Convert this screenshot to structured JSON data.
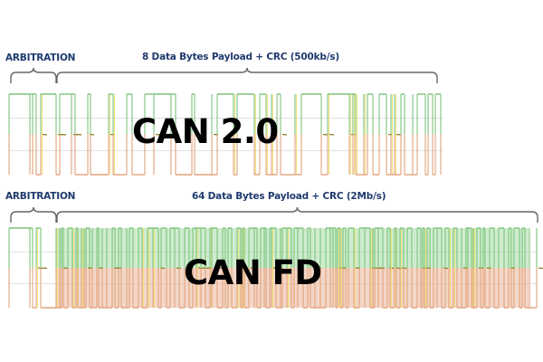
{
  "colors": {
    "label_text": "#1f3a6e",
    "brace": "#666666",
    "high_line": "#7cc47c",
    "low_line": "#e2a27c",
    "fill_high": "#a8dca8",
    "fill_low": "#e9b79a",
    "mid_marker": "#8a7a20",
    "grid": "#d8d8d8",
    "edge_yellow": "#f2e27a"
  },
  "can20": {
    "arbitration_label": "ARBITRATION",
    "payload_label": "8 Data Bytes Payload + CRC (500kb/s)",
    "title": "CAN 2.0",
    "bit_rate": "500kb/s",
    "payload_bytes": 8
  },
  "canfd": {
    "arbitration_label": "ARBITRATION",
    "payload_label": "64 Data Bytes Payload + CRC (2Mb/s)",
    "title": "CAN FD",
    "bit_rate": "2Mb/s",
    "payload_bytes": 64
  }
}
